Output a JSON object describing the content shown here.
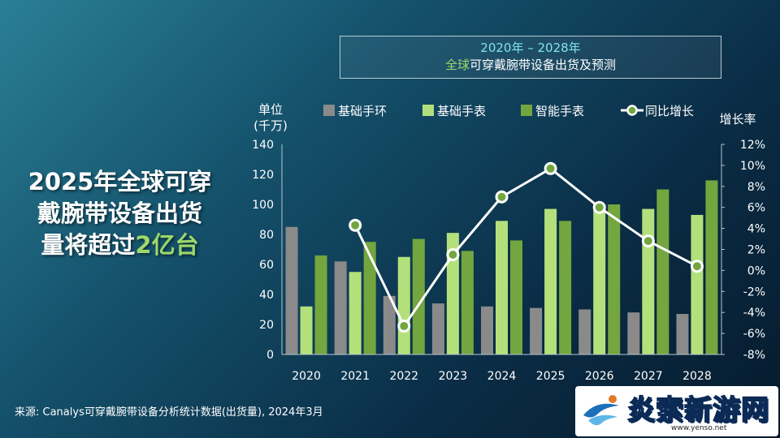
{
  "headline": {
    "line1": "2025年全球可穿",
    "line2": "戴腕带设备出货",
    "line3_prefix": "量将超过",
    "line3_highlight": "2亿台"
  },
  "title_box": {
    "line1": "2020年 – 2028年",
    "line2_highlight": "全球",
    "line2_rest": "可穿戴腕带设备出货及预测"
  },
  "source": "来源: Canalys可穿戴腕带设备分析统计数据(出货量), 2024年3月",
  "watermark": {
    "text": "炎索新游网",
    "url": "www.yenso.net"
  },
  "colors": {
    "basic_band": "#8a8a8a",
    "basic_watch": "#b4e07c",
    "smart_watch": "#73a63f",
    "yoy_line": "#ffffff",
    "highlight": "#9cd86b"
  },
  "chart_data": {
    "type": "bar",
    "categories": [
      "2020",
      "2021",
      "2022",
      "2023",
      "2024",
      "2025",
      "2026",
      "2027",
      "2028"
    ],
    "series": [
      {
        "name": "基础手环",
        "values": [
          85,
          62,
          39,
          34,
          32,
          31,
          30,
          28,
          27
        ]
      },
      {
        "name": "基础手表",
        "values": [
          32,
          55,
          65,
          81,
          89,
          97,
          100,
          97,
          93
        ]
      },
      {
        "name": "智能手表",
        "values": [
          66,
          75,
          77,
          69,
          76,
          89,
          100,
          110,
          116
        ]
      }
    ],
    "line_series": {
      "name": "同比增长",
      "values": [
        4.3,
        -5.3,
        1.5,
        7.0,
        9.7,
        6.0,
        2.8,
        0.4
      ],
      "start_index": 1
    },
    "ylabel_line1": "单位",
    "ylabel_line2": "(千万)",
    "ylim": [
      0,
      140
    ],
    "yticks": [
      "140",
      "120",
      "100",
      "80",
      "60",
      "40",
      "20",
      "0"
    ],
    "y2label": "增长率",
    "y2lim": [
      -8,
      12
    ],
    "y2ticks": [
      "12%",
      "10%",
      "8%",
      "6%",
      "4%",
      "2%",
      "0%",
      "-2%",
      "-4%",
      "-6%",
      "-8%"
    ],
    "legend_position": "top"
  }
}
